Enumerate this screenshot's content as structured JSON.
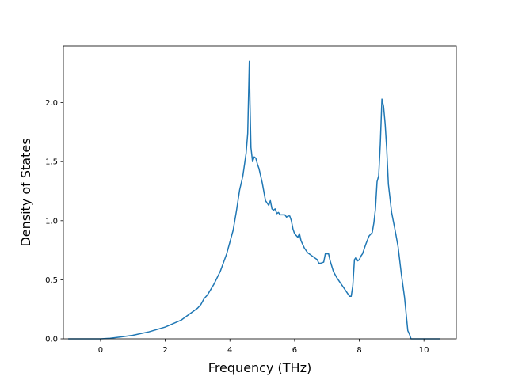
{
  "chart_data": {
    "type": "line",
    "title": "",
    "xlabel": "Frequency (THz)",
    "ylabel": "Density of States",
    "xlim": [
      -1.15,
      11.0
    ],
    "ylim": [
      0.0,
      2.48
    ],
    "x_ticks": [
      0,
      2,
      4,
      6,
      8,
      10
    ],
    "y_ticks": [
      0.0,
      0.5,
      1.0,
      1.5,
      2.0
    ],
    "x_tick_labels": [
      "0",
      "2",
      "4",
      "6",
      "8",
      "10"
    ],
    "y_tick_labels": [
      "0.0",
      "0.5",
      "1.0",
      "1.5",
      "2.0"
    ],
    "grid": false,
    "legend": "none",
    "colors": {
      "line": "#1f77b4"
    },
    "series": [
      {
        "x": [
          -1.0,
          -0.5,
          0.0,
          0.3,
          0.6,
          1.0,
          1.5,
          2.0,
          2.5,
          3.0,
          3.1,
          3.2,
          3.3,
          3.5,
          3.7,
          3.9,
          4.1,
          4.2,
          4.3,
          4.4,
          4.5,
          4.55,
          4.6,
          4.62,
          4.65,
          4.7,
          4.75,
          4.8,
          4.85,
          4.9,
          5.0,
          5.1,
          5.2,
          5.25,
          5.3,
          5.35,
          5.4,
          5.45,
          5.5,
          5.55,
          5.6,
          5.7,
          5.75,
          5.8,
          5.85,
          5.9,
          5.95,
          6.0,
          6.1,
          6.15,
          6.2,
          6.3,
          6.4,
          6.5,
          6.6,
          6.7,
          6.75,
          6.8,
          6.9,
          6.95,
          7.0,
          7.05,
          7.1,
          7.2,
          7.3,
          7.4,
          7.5,
          7.6,
          7.7,
          7.75,
          7.8,
          7.85,
          7.9,
          7.95,
          8.0,
          8.05,
          8.1,
          8.2,
          8.3,
          8.4,
          8.45,
          8.5,
          8.55,
          8.6,
          8.65,
          8.7,
          8.75,
          8.8,
          8.85,
          8.9,
          9.0,
          9.1,
          9.2,
          9.3,
          9.35,
          9.4,
          9.5,
          9.55,
          9.6,
          10.0,
          10.5
        ],
        "y": [
          0.0,
          0.0,
          0.0,
          0.005,
          0.015,
          0.03,
          0.06,
          0.1,
          0.16,
          0.26,
          0.29,
          0.34,
          0.37,
          0.46,
          0.57,
          0.72,
          0.92,
          1.08,
          1.26,
          1.38,
          1.57,
          1.74,
          2.35,
          2.0,
          1.62,
          1.5,
          1.54,
          1.53,
          1.48,
          1.44,
          1.32,
          1.17,
          1.13,
          1.17,
          1.1,
          1.09,
          1.1,
          1.06,
          1.07,
          1.05,
          1.05,
          1.05,
          1.03,
          1.04,
          1.04,
          1.0,
          0.93,
          0.89,
          0.86,
          0.89,
          0.83,
          0.77,
          0.73,
          0.71,
          0.69,
          0.67,
          0.64,
          0.64,
          0.65,
          0.72,
          0.72,
          0.72,
          0.66,
          0.57,
          0.52,
          0.48,
          0.44,
          0.4,
          0.36,
          0.36,
          0.45,
          0.67,
          0.69,
          0.66,
          0.67,
          0.7,
          0.72,
          0.8,
          0.87,
          0.9,
          0.98,
          1.1,
          1.33,
          1.38,
          1.65,
          2.03,
          1.97,
          1.82,
          1.6,
          1.31,
          1.07,
          0.93,
          0.78,
          0.55,
          0.45,
          0.35,
          0.07,
          0.04,
          0.0,
          0.0,
          0.0
        ]
      }
    ]
  }
}
